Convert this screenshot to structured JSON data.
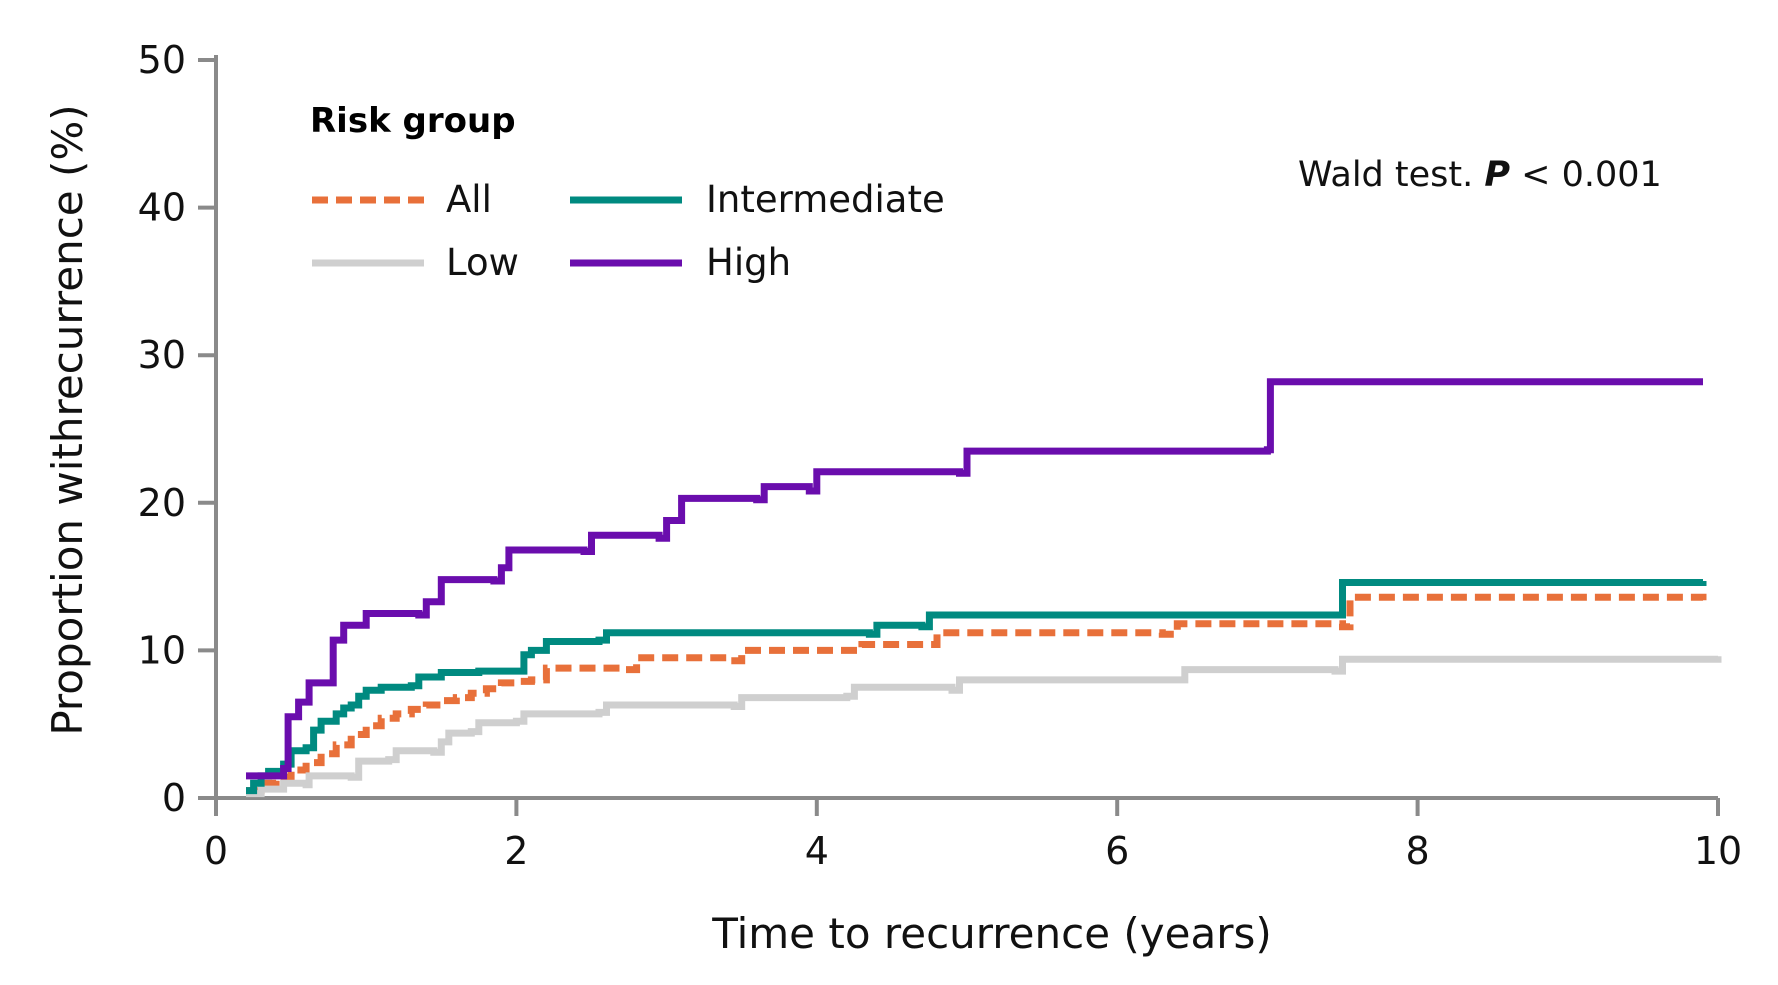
{
  "chart_data": {
    "type": "line",
    "subtype": "step",
    "xlabel": "Time to recurrence (years)",
    "ylabel": "Proportion withrecurrence (%)",
    "xlim": [
      0,
      10
    ],
    "ylim": [
      0,
      50
    ],
    "xticks": [
      "0",
      "2",
      "4",
      "6",
      "8",
      "10"
    ],
    "yticks": [
      "0",
      "10",
      "20",
      "30",
      "40",
      "50"
    ],
    "xtick_values": [
      0,
      2,
      4,
      6,
      8,
      10
    ],
    "ytick_values": [
      0,
      10,
      20,
      30,
      40,
      50
    ],
    "grid": false,
    "legend": {
      "title": "Risk group",
      "placement": "top-left",
      "entries": [
        "All",
        "Low",
        "Intermediate",
        "High"
      ]
    },
    "annotation": {
      "prefix": "Wald test. ",
      "p_symbol": "P",
      "suffix": " < 0.001",
      "placement": "top-right"
    },
    "series": [
      {
        "name": "All",
        "color": "#E8703A",
        "style": "dashed",
        "points": [
          [
            0.2,
            0.5
          ],
          [
            0.3,
            1.0
          ],
          [
            0.4,
            1.4
          ],
          [
            0.5,
            1.9
          ],
          [
            0.6,
            2.4
          ],
          [
            0.7,
            3.0
          ],
          [
            0.8,
            3.6
          ],
          [
            0.9,
            4.3
          ],
          [
            1.0,
            4.9
          ],
          [
            1.1,
            5.4
          ],
          [
            1.2,
            5.7
          ],
          [
            1.3,
            6.0
          ],
          [
            1.4,
            6.3
          ],
          [
            1.5,
            6.6
          ],
          [
            1.6,
            6.8
          ],
          [
            1.7,
            7.1
          ],
          [
            1.8,
            7.4
          ],
          [
            1.9,
            7.8
          ],
          [
            2.0,
            7.9
          ],
          [
            2.1,
            8.0
          ],
          [
            2.2,
            8.8
          ],
          [
            2.7,
            8.7
          ],
          [
            2.8,
            9.5
          ],
          [
            3.4,
            9.3
          ],
          [
            3.5,
            10.0
          ],
          [
            4.3,
            10.4
          ],
          [
            4.8,
            11.2
          ],
          [
            6.3,
            11.1
          ],
          [
            6.4,
            11.8
          ],
          [
            7.5,
            11.6
          ],
          [
            7.55,
            13.6
          ],
          [
            9.9,
            13.4
          ]
        ]
      },
      {
        "name": "Low",
        "color": "#CFCFCF",
        "style": "solid",
        "points": [
          [
            0.2,
            0.3
          ],
          [
            0.3,
            0.6
          ],
          [
            0.45,
            1.0
          ],
          [
            0.6,
            0.9
          ],
          [
            0.62,
            1.5
          ],
          [
            0.9,
            1.4
          ],
          [
            0.95,
            2.5
          ],
          [
            1.15,
            2.6
          ],
          [
            1.2,
            3.2
          ],
          [
            1.45,
            3.1
          ],
          [
            1.5,
            3.8
          ],
          [
            1.55,
            4.4
          ],
          [
            1.7,
            4.5
          ],
          [
            1.75,
            5.1
          ],
          [
            2.0,
            5.2
          ],
          [
            2.05,
            5.7
          ],
          [
            2.55,
            5.8
          ],
          [
            2.6,
            6.3
          ],
          [
            3.45,
            6.2
          ],
          [
            3.5,
            6.8
          ],
          [
            4.2,
            6.9
          ],
          [
            4.25,
            7.5
          ],
          [
            4.9,
            7.3
          ],
          [
            4.95,
            8.0
          ],
          [
            6.4,
            8.0
          ],
          [
            6.45,
            8.7
          ],
          [
            7.45,
            8.6
          ],
          [
            7.5,
            9.4
          ],
          [
            10.0,
            9.6
          ]
        ]
      },
      {
        "name": "Intermediate",
        "color": "#008A80",
        "style": "solid",
        "points": [
          [
            0.2,
            0.5
          ],
          [
            0.25,
            1.0
          ],
          [
            0.3,
            1.5
          ],
          [
            0.35,
            1.8
          ],
          [
            0.45,
            2.3
          ],
          [
            0.5,
            3.2
          ],
          [
            0.6,
            3.4
          ],
          [
            0.65,
            4.6
          ],
          [
            0.7,
            5.2
          ],
          [
            0.8,
            5.7
          ],
          [
            0.85,
            6.1
          ],
          [
            0.9,
            6.3
          ],
          [
            0.95,
            6.9
          ],
          [
            1.0,
            7.3
          ],
          [
            1.1,
            7.5
          ],
          [
            1.3,
            7.6
          ],
          [
            1.35,
            8.2
          ],
          [
            1.5,
            8.5
          ],
          [
            1.75,
            8.6
          ],
          [
            2.0,
            8.6
          ],
          [
            2.05,
            9.7
          ],
          [
            2.1,
            10.0
          ],
          [
            2.2,
            10.6
          ],
          [
            2.55,
            10.7
          ],
          [
            2.6,
            11.2
          ],
          [
            4.35,
            11.1
          ],
          [
            4.4,
            11.7
          ],
          [
            4.7,
            11.6
          ],
          [
            4.75,
            12.4
          ],
          [
            7.45,
            12.4
          ],
          [
            7.5,
            14.6
          ],
          [
            9.9,
            14.7
          ]
        ]
      },
      {
        "name": "High",
        "color": "#6A0DAD",
        "style": "solid",
        "points": [
          [
            0.2,
            1.5
          ],
          [
            0.45,
            2.0
          ],
          [
            0.48,
            5.5
          ],
          [
            0.55,
            6.5
          ],
          [
            0.62,
            7.8
          ],
          [
            0.75,
            7.8
          ],
          [
            0.78,
            10.7
          ],
          [
            0.85,
            11.7
          ],
          [
            1.0,
            12.5
          ],
          [
            1.35,
            12.4
          ],
          [
            1.4,
            13.3
          ],
          [
            1.5,
            14.8
          ],
          [
            1.85,
            14.7
          ],
          [
            1.9,
            15.6
          ],
          [
            1.95,
            16.8
          ],
          [
            2.45,
            16.7
          ],
          [
            2.5,
            17.8
          ],
          [
            2.95,
            17.6
          ],
          [
            3.0,
            18.8
          ],
          [
            3.1,
            20.3
          ],
          [
            3.6,
            20.2
          ],
          [
            3.65,
            21.1
          ],
          [
            3.95,
            20.8
          ],
          [
            4.0,
            22.1
          ],
          [
            4.95,
            22.0
          ],
          [
            5.0,
            23.5
          ],
          [
            7.0,
            23.6
          ],
          [
            7.02,
            28.2
          ],
          [
            9.9,
            28.2
          ]
        ]
      }
    ]
  }
}
